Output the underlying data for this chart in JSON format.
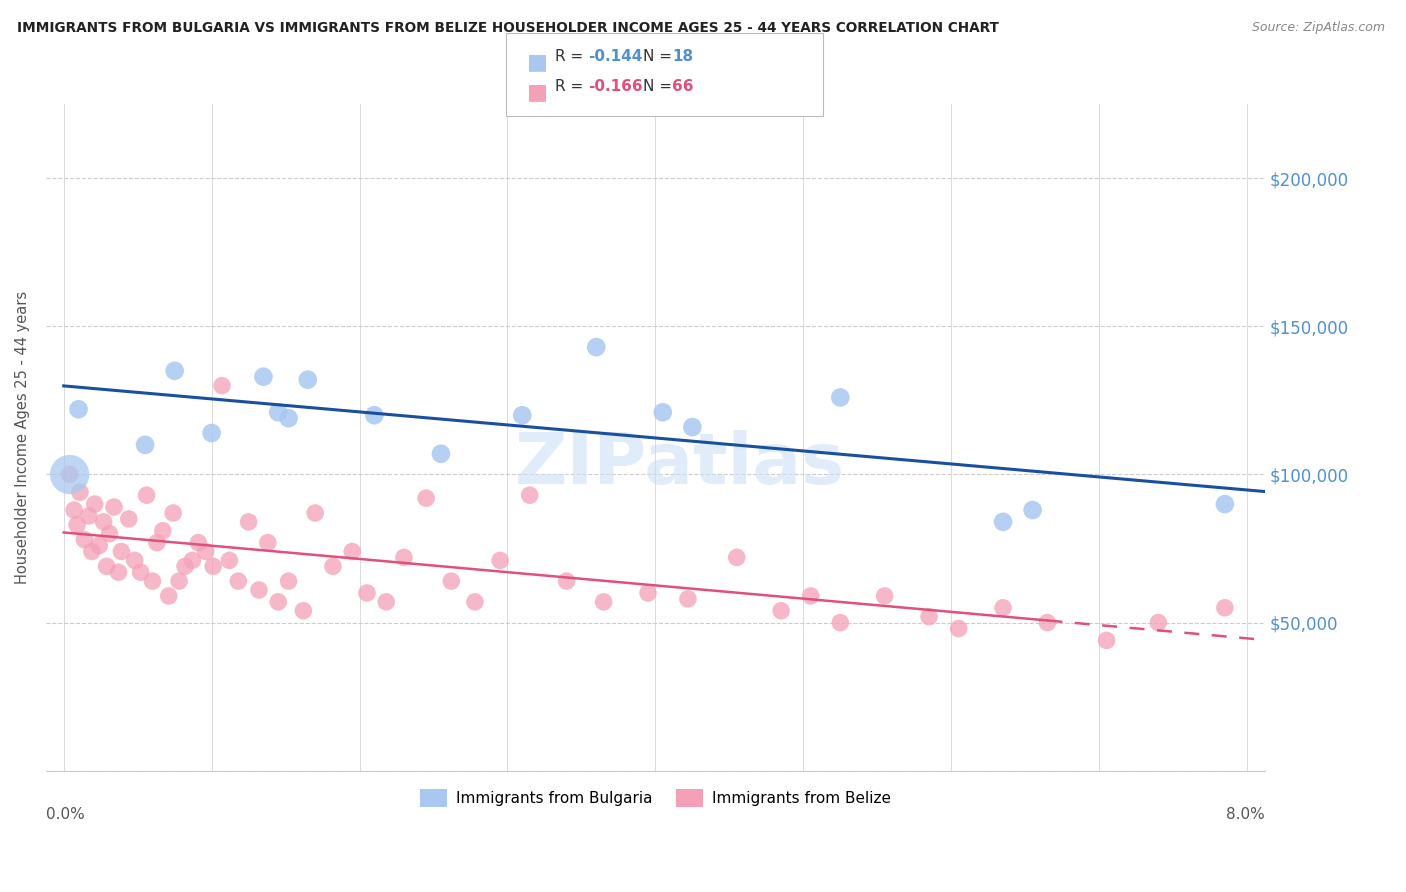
{
  "title": "IMMIGRANTS FROM BULGARIA VS IMMIGRANTS FROM BELIZE HOUSEHOLDER INCOME AGES 25 - 44 YEARS CORRELATION CHART",
  "source": "Source: ZipAtlas.com",
  "ylabel": "Householder Income Ages 25 - 44 years",
  "xlim": [
    0.0,
    8.0
  ],
  "ylim": [
    0,
    220000
  ],
  "yticks": [
    0,
    50000,
    100000,
    150000,
    200000
  ],
  "ytick_labels": [
    "",
    "$50,000",
    "$100,000",
    "$150,000",
    "$200,000"
  ],
  "bulgaria_color": "#a8c8f0",
  "belize_color": "#f4a0b8",
  "bulgaria_line_color": "#1a4fa0",
  "belize_line_color": "#e0507a",
  "bulgaria_R": -0.144,
  "bulgaria_N": 18,
  "belize_R": -0.166,
  "belize_N": 66,
  "ytick_color": "#5090d0",
  "bulgaria_scatter_x": [
    0.1,
    0.55,
    0.75,
    1.0,
    1.35,
    1.45,
    1.52,
    1.65,
    2.1,
    2.55,
    3.1,
    3.6,
    4.05,
    4.25,
    5.25,
    6.35,
    6.55,
    7.85
  ],
  "bulgaria_scatter_y": [
    122000,
    110000,
    135000,
    114000,
    133000,
    121000,
    119000,
    132000,
    120000,
    107000,
    120000,
    143000,
    121000,
    116000,
    126000,
    84000,
    88000,
    90000
  ],
  "bulgaria_big_dot_x": 0.04,
  "bulgaria_big_dot_y": 100000,
  "belize_scatter_x": [
    0.04,
    0.07,
    0.09,
    0.11,
    0.14,
    0.17,
    0.19,
    0.21,
    0.24,
    0.27,
    0.29,
    0.31,
    0.34,
    0.37,
    0.39,
    0.44,
    0.48,
    0.52,
    0.56,
    0.6,
    0.63,
    0.67,
    0.71,
    0.74,
    0.78,
    0.82,
    0.87,
    0.91,
    0.96,
    1.01,
    1.07,
    1.12,
    1.18,
    1.25,
    1.32,
    1.38,
    1.45,
    1.52,
    1.62,
    1.7,
    1.82,
    1.95,
    2.05,
    2.18,
    2.3,
    2.45,
    2.62,
    2.78,
    2.95,
    3.15,
    3.4,
    3.65,
    3.95,
    4.22,
    4.55,
    4.85,
    5.05,
    5.25,
    5.55,
    5.85,
    6.05,
    6.35,
    6.65,
    7.05,
    7.4,
    7.85
  ],
  "belize_scatter_y": [
    100000,
    88000,
    83000,
    94000,
    78000,
    86000,
    74000,
    90000,
    76000,
    84000,
    69000,
    80000,
    89000,
    67000,
    74000,
    85000,
    71000,
    67000,
    93000,
    64000,
    77000,
    81000,
    59000,
    87000,
    64000,
    69000,
    71000,
    77000,
    74000,
    69000,
    130000,
    71000,
    64000,
    84000,
    61000,
    77000,
    57000,
    64000,
    54000,
    87000,
    69000,
    74000,
    60000,
    57000,
    72000,
    92000,
    64000,
    57000,
    71000,
    93000,
    64000,
    57000,
    60000,
    58000,
    72000,
    54000,
    59000,
    50000,
    59000,
    52000,
    48000,
    55000,
    50000,
    44000,
    50000,
    55000
  ],
  "belize_solid_end_x": 6.65,
  "watermark_text": "ZIPatlas",
  "watermark_color": "#cce0f5",
  "watermark_alpha": 0.6
}
